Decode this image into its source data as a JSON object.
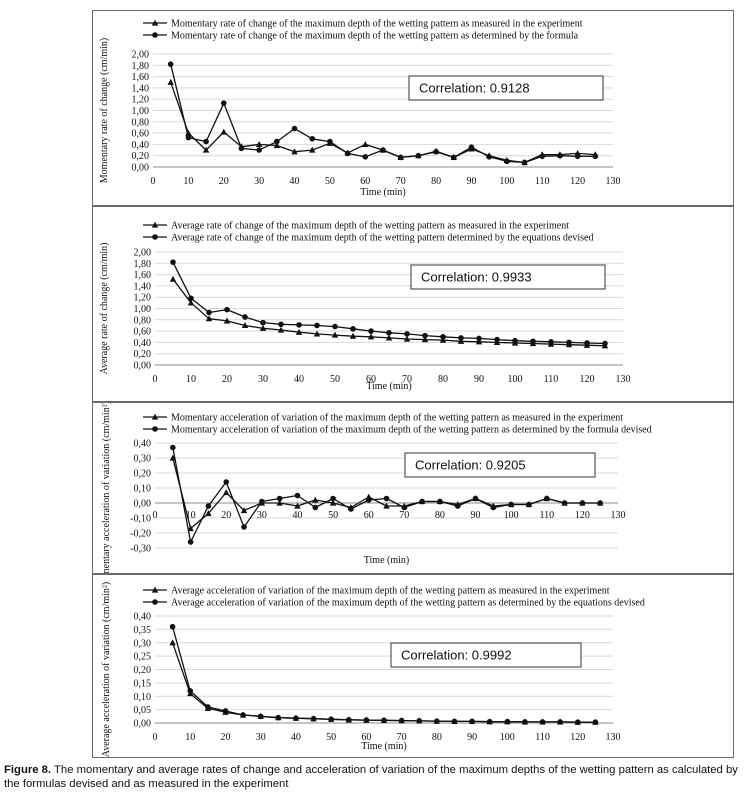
{
  "chart_data": [
    {
      "type": "line",
      "ylabel": "Momentary rate of change (cm/min)",
      "xlabel": "Time (min)",
      "xlim": [
        0,
        130
      ],
      "ylim": [
        0,
        2.0
      ],
      "xticks": [
        0,
        10,
        20,
        30,
        40,
        50,
        60,
        70,
        80,
        90,
        100,
        110,
        120,
        130
      ],
      "yticks": [
        "0,00",
        "0,20",
        "0,40",
        "0,60",
        "0,80",
        "1,00",
        "1,20",
        "1,40",
        "1,60",
        "1,80",
        "2,00"
      ],
      "yaxis_at_bottom": true,
      "annotation": "Correlation: 0.9128",
      "legend": "top",
      "grid": "horizontal",
      "x": [
        5,
        10,
        15,
        20,
        25,
        30,
        35,
        40,
        45,
        50,
        55,
        60,
        65,
        70,
        75,
        80,
        85,
        90,
        95,
        100,
        105,
        110,
        115,
        120,
        125
      ],
      "series": [
        {
          "name": "Momentary rate of change of the maximum depth of the wetting pattern as measured in the experiment",
          "marker": "triangle",
          "values": [
            1.5,
            0.6,
            0.3,
            0.62,
            0.36,
            0.4,
            0.38,
            0.27,
            0.3,
            0.42,
            0.25,
            0.4,
            0.3,
            0.17,
            0.2,
            0.28,
            0.17,
            0.32,
            0.2,
            0.12,
            0.08,
            0.22,
            0.22,
            0.24,
            0.22
          ]
        },
        {
          "name": "Momentary rate of change of the maximum depth of the wetting pattern as determined by the formula",
          "marker": "circle",
          "values": [
            1.82,
            0.52,
            0.45,
            1.13,
            0.33,
            0.3,
            0.45,
            0.68,
            0.5,
            0.45,
            0.24,
            0.18,
            0.3,
            0.17,
            0.2,
            0.27,
            0.17,
            0.35,
            0.18,
            0.1,
            0.08,
            0.19,
            0.2,
            0.19,
            0.19
          ]
        }
      ]
    },
    {
      "type": "line",
      "ylabel": "Average rate of change (cm/min)",
      "xlabel": "Time (min)",
      "xlim": [
        0,
        130
      ],
      "ylim": [
        0,
        2.0
      ],
      "xticks": [
        0,
        10,
        20,
        30,
        40,
        50,
        60,
        70,
        80,
        90,
        100,
        110,
        120,
        130
      ],
      "yticks": [
        "0,00",
        "0,20",
        "0,40",
        "0,60",
        "0,80",
        "1,00",
        "1,20",
        "1,40",
        "1,60",
        "1,80",
        "2,00"
      ],
      "yaxis_at_bottom": true,
      "annotation": "Correlation:  0.9933",
      "legend": "top",
      "grid": "horizontal",
      "x": [
        5,
        10,
        15,
        20,
        25,
        30,
        35,
        40,
        45,
        50,
        55,
        60,
        65,
        70,
        75,
        80,
        85,
        90,
        95,
        100,
        105,
        110,
        115,
        120,
        125
      ],
      "series": [
        {
          "name": "Average rate of change of the maximum depth of the wetting pattern as measured in the experiment",
          "marker": "triangle",
          "values": [
            1.52,
            1.1,
            0.82,
            0.78,
            0.7,
            0.65,
            0.62,
            0.58,
            0.55,
            0.53,
            0.51,
            0.5,
            0.48,
            0.46,
            0.45,
            0.44,
            0.42,
            0.41,
            0.4,
            0.39,
            0.38,
            0.37,
            0.36,
            0.35,
            0.34
          ]
        },
        {
          "name": "Average rate of change of the maximum depth of the wetting pattern determined by the equations devised",
          "marker": "circle",
          "values": [
            1.82,
            1.18,
            0.93,
            0.98,
            0.85,
            0.75,
            0.72,
            0.71,
            0.7,
            0.68,
            0.64,
            0.6,
            0.57,
            0.55,
            0.52,
            0.5,
            0.48,
            0.47,
            0.45,
            0.43,
            0.42,
            0.41,
            0.4,
            0.39,
            0.38
          ]
        }
      ]
    },
    {
      "type": "line",
      "ylabel": "Momentary acceleration of variation (cm/min²)",
      "xlabel": "Time (min)",
      "xlim": [
        0,
        130
      ],
      "ylim": [
        -0.3,
        0.4
      ],
      "xticks": [
        0,
        10,
        20,
        30,
        40,
        50,
        60,
        70,
        80,
        90,
        100,
        110,
        120,
        130
      ],
      "yticks": [
        "-0,30",
        "-0,20",
        "-0,10",
        "0,00",
        "0,10",
        "0,20",
        "0,30",
        "0,40"
      ],
      "yaxis_at_bottom": false,
      "annotation": "Correlation: 0.9205",
      "legend": "top",
      "grid": "horizontal",
      "x": [
        5,
        10,
        15,
        20,
        25,
        30,
        35,
        40,
        45,
        50,
        55,
        60,
        65,
        70,
        75,
        80,
        85,
        90,
        95,
        100,
        105,
        110,
        115,
        120,
        125
      ],
      "series": [
        {
          "name": "Momentary acceleration of variation of the maximum depth of the wetting pattern as measured in the experiment",
          "marker": "triangle",
          "values": [
            0.3,
            -0.17,
            -0.07,
            0.07,
            -0.05,
            0.0,
            0.0,
            -0.02,
            0.02,
            0.0,
            -0.03,
            0.04,
            -0.02,
            -0.02,
            0.01,
            0.01,
            -0.01,
            0.03,
            -0.02,
            -0.01,
            -0.01,
            0.03,
            0.0,
            0.0,
            0.0
          ]
        },
        {
          "name": "Momentary acceleration of variation of the maximum depth of the wetting pattern as determined by the formula devised",
          "marker": "circle",
          "values": [
            0.37,
            -0.26,
            -0.02,
            0.14,
            -0.16,
            0.01,
            0.03,
            0.05,
            -0.03,
            0.03,
            -0.04,
            0.02,
            0.03,
            -0.03,
            0.01,
            0.01,
            -0.02,
            0.03,
            -0.03,
            -0.01,
            -0.01,
            0.03,
            0.0,
            0.0,
            0.0
          ]
        }
      ]
    },
    {
      "type": "line",
      "ylabel": "Average acceleration of variation (cm/min²)",
      "xlabel": "Time (min)",
      "xlim": [
        0,
        130
      ],
      "ylim": [
        0,
        0.4
      ],
      "xticks": [
        0,
        10,
        20,
        30,
        40,
        50,
        60,
        70,
        80,
        90,
        100,
        110,
        120,
        130
      ],
      "yticks": [
        "0,00",
        "0,05",
        "0,10",
        "0,15",
        "0,20",
        "0,25",
        "0,30",
        "0,35",
        "0,40"
      ],
      "yaxis_at_bottom": true,
      "annotation": "Correlation: 0.9992",
      "legend": "top",
      "grid": "horizontal",
      "x": [
        5,
        10,
        15,
        20,
        25,
        30,
        35,
        40,
        45,
        50,
        55,
        60,
        65,
        70,
        75,
        80,
        85,
        90,
        95,
        100,
        105,
        110,
        115,
        120,
        125
      ],
      "series": [
        {
          "name": "Average acceleration of variation of the maximum depth of the wetting pattern as measured in the experiment",
          "marker": "triangle",
          "values": [
            0.3,
            0.11,
            0.055,
            0.04,
            0.03,
            0.025,
            0.02,
            0.018,
            0.016,
            0.014,
            0.012,
            0.011,
            0.01,
            0.009,
            0.008,
            0.007,
            0.006,
            0.006,
            0.005,
            0.005,
            0.004,
            0.004,
            0.004,
            0.003,
            0.003
          ]
        },
        {
          "name": "Average acceleration of variation of the maximum depth of the wetting pattern as determined by the equations devised",
          "marker": "circle",
          "values": [
            0.36,
            0.12,
            0.06,
            0.045,
            0.03,
            0.025,
            0.02,
            0.018,
            0.016,
            0.014,
            0.012,
            0.011,
            0.01,
            0.009,
            0.008,
            0.007,
            0.006,
            0.006,
            0.005,
            0.005,
            0.004,
            0.004,
            0.004,
            0.003,
            0.003
          ]
        }
      ]
    }
  ],
  "caption": {
    "label": "Figure 8.",
    "text": " The momentary and average rates of change and acceleration of variation of the maximum depths of the wetting pattern as calculated by the formulas devised and as measured in the experiment"
  }
}
